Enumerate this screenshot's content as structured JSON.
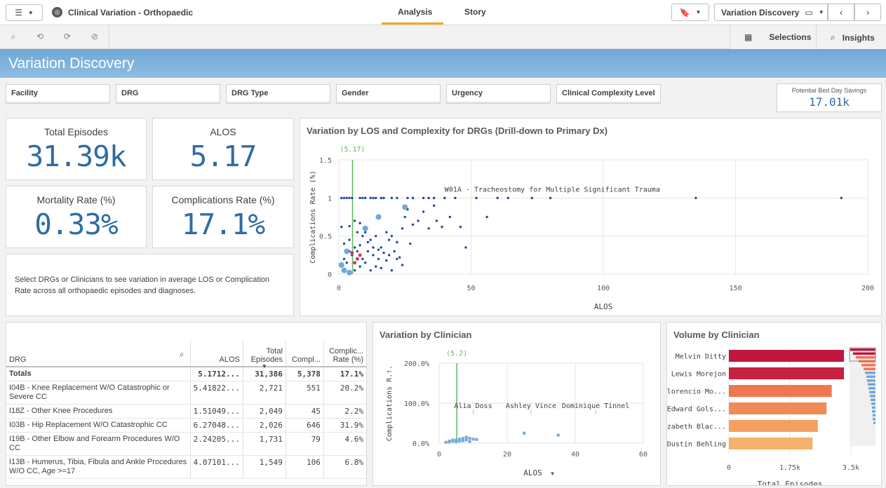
{
  "app": {
    "title": "Clinical Variation - Orthopaedic",
    "app_icon": "globe-icon"
  },
  "tabs": [
    {
      "label": "Analysis",
      "active": true
    },
    {
      "label": "Story",
      "active": false
    }
  ],
  "sheet_nav": {
    "current_sheet": "Variation Discovery"
  },
  "toolbar": {
    "selections_label": "Selections",
    "insights_label": "Insights"
  },
  "banner": {
    "title": "Variation Discovery",
    "color": "#7db3dd"
  },
  "filters": [
    {
      "label": "Facility"
    },
    {
      "label": "DRG"
    },
    {
      "label": "DRG Type"
    },
    {
      "label": "Gender"
    },
    {
      "label": "Urgency"
    },
    {
      "label": "Clinical Complexity Level"
    }
  ],
  "savings": {
    "label": "Potential Bed Day Savings",
    "value": "17.01k"
  },
  "kpis": {
    "total_episodes": {
      "label": "Total Episodes",
      "value": "31.39k"
    },
    "alos": {
      "label": "ALOS",
      "value": "5.17"
    },
    "mortality": {
      "label": "Mortality Rate (%)",
      "value": "0.33%"
    },
    "complications": {
      "label": "Complications Rate (%)",
      "value": "17.1%"
    }
  },
  "help_text": "Select DRGs or Clinicians to see variation in average LOS or Complication Rate across all orthopaedic episodes and diagnoses.",
  "chart_data": [
    {
      "type": "scatter",
      "title": "Variation by LOS and Complexity for DRGs (Drill-down to Primary Dx)",
      "xlabel": "ALOS",
      "ylabel": "Complications Rate (%)",
      "xlim": [
        0,
        200
      ],
      "ylim": [
        0,
        1.5
      ],
      "x_ticks": [
        "0",
        "50",
        "100",
        "150",
        "200"
      ],
      "y_ticks": [
        "0",
        "0.5",
        "1",
        "1.5"
      ],
      "reference_line": {
        "x": 5.17,
        "label": "(5.17)"
      },
      "annotation": {
        "label": "W01A - Tracheostomy for Multiple Significant Trauma",
        "x": 40,
        "y": 1.1
      },
      "points": [
        [
          1,
          1
        ],
        [
          2,
          1
        ],
        [
          3,
          1
        ],
        [
          4,
          1
        ],
        [
          5,
          1
        ],
        [
          8,
          1
        ],
        [
          9,
          1
        ],
        [
          10,
          1
        ],
        [
          12,
          1
        ],
        [
          13,
          1
        ],
        [
          14,
          1
        ],
        [
          16,
          1
        ],
        [
          17,
          1
        ],
        [
          20,
          1
        ],
        [
          22,
          1
        ],
        [
          26,
          1
        ],
        [
          28,
          1
        ],
        [
          32,
          1
        ],
        [
          34,
          1
        ],
        [
          36,
          1
        ],
        [
          40,
          1
        ],
        [
          44,
          1
        ],
        [
          52,
          1
        ],
        [
          60,
          1
        ],
        [
          64,
          1
        ],
        [
          73,
          1
        ],
        [
          80,
          1
        ],
        [
          135,
          1
        ],
        [
          190,
          1
        ],
        [
          1,
          0.62
        ],
        [
          4,
          0.63
        ],
        [
          6,
          0.7
        ],
        [
          8,
          0.67
        ],
        [
          10,
          0.55
        ],
        [
          12,
          0.45
        ],
        [
          14,
          0.5
        ],
        [
          16,
          0.35
        ],
        [
          18,
          0.55
        ],
        [
          19,
          0.45
        ],
        [
          20,
          0.5
        ],
        [
          22,
          0.42
        ],
        [
          24,
          0.6
        ],
        [
          25,
          0.75
        ],
        [
          26,
          0.85
        ],
        [
          27,
          0.4
        ],
        [
          28,
          0.65
        ],
        [
          30,
          0.7
        ],
        [
          32,
          0.82
        ],
        [
          34,
          0.6
        ],
        [
          36,
          0.9
        ],
        [
          37,
          0.7
        ],
        [
          39,
          0.62
        ],
        [
          42,
          0.75
        ],
        [
          46,
          0.62
        ],
        [
          48,
          0.35
        ],
        [
          56,
          0.75
        ],
        [
          1,
          0.1
        ],
        [
          2,
          0.2
        ],
        [
          3,
          0.15
        ],
        [
          4,
          0.3
        ],
        [
          5,
          0.25
        ],
        [
          6,
          0.05
        ],
        [
          7,
          0.3
        ],
        [
          8,
          0.1
        ],
        [
          9,
          0.2
        ],
        [
          10,
          0.15
        ],
        [
          11,
          0.3
        ],
        [
          12,
          0.05
        ],
        [
          13,
          0.25
        ],
        [
          14,
          0.1
        ],
        [
          15,
          0.2
        ],
        [
          16,
          0.08
        ],
        [
          18,
          0.18
        ],
        [
          20,
          0.05
        ],
        [
          22,
          0.2
        ],
        [
          24,
          0.12
        ],
        [
          2,
          0.4
        ],
        [
          4,
          0.45
        ],
        [
          6,
          0.35
        ],
        [
          8,
          0.38
        ],
        [
          11,
          0.42
        ],
        [
          13,
          0.35
        ],
        [
          15,
          0.32
        ],
        [
          17,
          0.28
        ],
        [
          19,
          0.25
        ],
        [
          21,
          0.3
        ],
        [
          23,
          0.22
        ],
        [
          7,
          0.55
        ],
        [
          9,
          0.5
        ]
      ],
      "highlighted_points": [
        [
          6,
          0.15
        ],
        [
          7,
          0.2
        ],
        [
          8,
          0.25
        ],
        [
          5,
          0.28
        ]
      ],
      "large_points": [
        [
          2,
          0.05
        ],
        [
          1,
          0.12
        ],
        [
          10,
          0.6
        ],
        [
          15,
          0.75
        ],
        [
          25,
          0.88
        ],
        [
          3,
          0.3
        ],
        [
          4,
          0.02
        ]
      ]
    },
    {
      "type": "scatter",
      "title": "Variation by Clinician",
      "xlabel": "ALOS",
      "ylabel": "Complications R...",
      "xlim": [
        0,
        60
      ],
      "ylim": [
        0,
        2
      ],
      "x_ticks": [
        "0",
        "20",
        "40",
        "60"
      ],
      "y_ticks": [
        "0.0%",
        "100.0%",
        "200.0%"
      ],
      "reference_line": {
        "x": 5.2,
        "label": "(5.2)"
      },
      "labels": [
        {
          "label": "Alia Doss",
          "x": 10
        },
        {
          "label": "Ashley Vince",
          "x": 27
        },
        {
          "label": "Dominique Tinnel",
          "x": 46
        }
      ],
      "points": [
        [
          2,
          0.02
        ],
        [
          3,
          0.03
        ],
        [
          4,
          0.05
        ],
        [
          5,
          0.08
        ],
        [
          6,
          0.1
        ],
        [
          7,
          0.12
        ],
        [
          8,
          0.15
        ],
        [
          9,
          0.12
        ],
        [
          10,
          0.1
        ],
        [
          4,
          0.08
        ],
        [
          6,
          0.05
        ],
        [
          8,
          0.08
        ],
        [
          5,
          0.03
        ],
        [
          7,
          0.06
        ],
        [
          9,
          0.04
        ],
        [
          35,
          0.2
        ],
        [
          25,
          0.25
        ],
        [
          3,
          0.05
        ],
        [
          11,
          0.09
        ]
      ]
    },
    {
      "type": "bar",
      "orientation": "horizontal",
      "title": "Volume by Clinician",
      "xlabel": "Total Episodes",
      "xlim": [
        0,
        3500
      ],
      "x_ticks": [
        "0",
        "1.75k",
        "3.5k"
      ],
      "categories": [
        "Melvin  Ditty",
        "Lewis  Morejon",
        "Florencio  Mo...",
        "Edward  Gols...",
        "Lizabeth  Blac...",
        "Dustin  Behling"
      ],
      "values": [
        3300,
        3300,
        2950,
        2800,
        2550,
        2400
      ],
      "colors": [
        "#c0163f",
        "#c8203f",
        "#ef7650",
        "#f08a57",
        "#f3a062",
        "#f5b06b"
      ]
    }
  ],
  "drg_table": {
    "search_icon": "magnifier-icon",
    "columns": [
      "DRG",
      "ALOS",
      "Total Episodes",
      "Compl...",
      "Complic... Rate (%)"
    ],
    "totals": {
      "drg": "Totals",
      "alos": "5.1712...",
      "episodes": "31,386",
      "compl": "5,378",
      "rate": "17.1%"
    },
    "rows": [
      {
        "drg": "I04B - Knee Replacement W/O Catastrophic or Severe CC",
        "alos": "5.41822...",
        "episodes": "2,721",
        "compl": "551",
        "rate": "20.2%"
      },
      {
        "drg": "I18Z - Other Knee Procedures",
        "alos": "1.51049...",
        "episodes": "2,049",
        "compl": "45",
        "rate": "2.2%"
      },
      {
        "drg": "I03B - Hip Replacement W/O Catastrophic CC",
        "alos": "6.27048...",
        "episodes": "2,026",
        "compl": "646",
        "rate": "31.9%"
      },
      {
        "drg": "I19B - Other Elbow and Forearm Procedures W/O CC",
        "alos": "2.24205...",
        "episodes": "1,731",
        "compl": "79",
        "rate": "4.6%"
      },
      {
        "drg": "I13B - Humerus, Tibia, Fibula and Ankle Procedures W/O CC, Age >=17",
        "alos": "4.07101...",
        "episodes": "1,549",
        "compl": "106",
        "rate": "6.8%"
      }
    ]
  }
}
